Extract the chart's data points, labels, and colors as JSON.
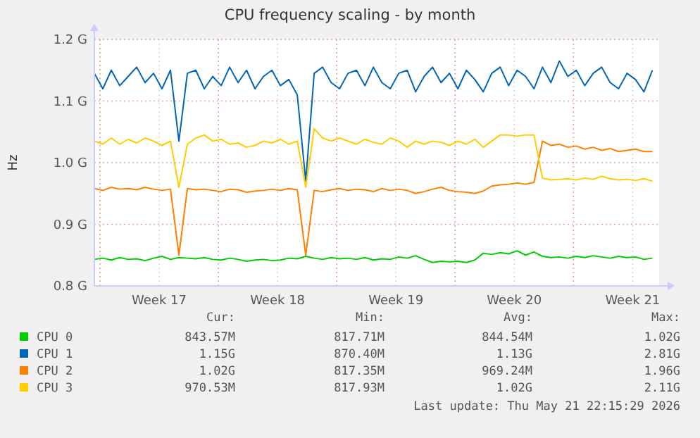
{
  "chart_data": {
    "type": "line",
    "title": "CPU frequency scaling - by month",
    "ylabel": "Hz",
    "x": [
      "2026-04-19T16:00",
      "2026-04-20T04:00",
      "2026-04-20T16:00",
      "2026-04-21T04:00",
      "2026-04-21T16:00",
      "2026-04-22T04:00",
      "2026-04-22T16:00",
      "2026-04-23T04:00",
      "2026-04-23T16:00",
      "2026-04-24T04:00",
      "2026-04-24T16:00",
      "2026-04-25T04:00",
      "2026-04-25T16:00",
      "2026-04-26T04:00",
      "2026-04-26T16:00",
      "2026-04-27T04:00",
      "2026-04-27T16:00",
      "2026-04-28T04:00",
      "2026-04-28T16:00",
      "2026-04-29T04:00",
      "2026-04-29T16:00",
      "2026-04-30T04:00",
      "2026-04-30T16:00",
      "2026-05-01T04:00",
      "2026-05-01T16:00",
      "2026-05-02T04:00",
      "2026-05-02T16:00",
      "2026-05-03T04:00",
      "2026-05-03T16:00",
      "2026-05-04T04:00",
      "2026-05-04T16:00",
      "2026-05-05T04:00",
      "2026-05-05T16:00",
      "2026-05-06T04:00",
      "2026-05-06T16:00",
      "2026-05-07T04:00",
      "2026-05-07T16:00",
      "2026-05-08T04:00",
      "2026-05-08T16:00",
      "2026-05-09T04:00",
      "2026-05-09T16:00",
      "2026-05-10T04:00",
      "2026-05-10T16:00",
      "2026-05-11T04:00",
      "2026-05-11T16:00",
      "2026-05-12T04:00",
      "2026-05-12T16:00",
      "2026-05-13T04:00",
      "2026-05-13T16:00",
      "2026-05-14T04:00",
      "2026-05-14T16:00",
      "2026-05-15T04:00",
      "2026-05-15T16:00",
      "2026-05-16T04:00",
      "2026-05-16T16:00",
      "2026-05-17T04:00",
      "2026-05-17T16:00",
      "2026-05-18T04:00",
      "2026-05-18T16:00",
      "2026-05-19T04:00",
      "2026-05-19T16:00",
      "2026-05-20T04:00",
      "2026-05-20T16:00",
      "2026-05-21T04:00",
      "2026-05-21T16:00",
      "2026-05-22T04:00",
      "2026-05-22T16:00"
    ],
    "xlim": [
      "2026-04-19T16:00",
      "2026-05-23T01:36"
    ],
    "xticks": [
      {
        "value": "2026-04-20",
        "label": null
      },
      {
        "value": "2026-04-23T12:00",
        "label": "Week 17"
      },
      {
        "value": "2026-04-27",
        "label": null
      },
      {
        "value": "2026-04-30T12:00",
        "label": "Week 18"
      },
      {
        "value": "2026-05-04",
        "label": null
      },
      {
        "value": "2026-05-07T12:00",
        "label": "Week 19"
      },
      {
        "value": "2026-05-11",
        "label": null
      },
      {
        "value": "2026-05-14T12:00",
        "label": "Week 20"
      },
      {
        "value": "2026-05-18",
        "label": null
      },
      {
        "value": "2026-05-21T12:00",
        "label": "Week 21"
      }
    ],
    "ylim": [
      0.8,
      1.2
    ],
    "yticks": [
      {
        "value": 0.8,
        "label": "0.8 G"
      },
      {
        "value": 0.9,
        "label": "0.9 G"
      },
      {
        "value": 1.0,
        "label": "1.0 G"
      },
      {
        "value": 1.1,
        "label": "1.1 G"
      },
      {
        "value": 1.2,
        "label": "1.2 G"
      }
    ],
    "grid": true,
    "legend": "bottom",
    "series": [
      {
        "name": "CPU 0",
        "color": "#00cc00",
        "values": [
          0.843,
          0.845,
          0.842,
          0.846,
          0.843,
          0.844,
          0.841,
          0.845,
          0.848,
          0.843,
          0.846,
          0.845,
          0.844,
          0.846,
          0.843,
          0.842,
          0.845,
          0.843,
          0.84,
          0.842,
          0.843,
          0.841,
          0.842,
          0.845,
          0.844,
          0.848,
          0.845,
          0.843,
          0.846,
          0.844,
          0.845,
          0.843,
          0.846,
          0.842,
          0.844,
          0.843,
          0.847,
          0.845,
          0.849,
          0.843,
          0.838,
          0.84,
          0.839,
          0.84,
          0.838,
          0.842,
          0.853,
          0.851,
          0.854,
          0.852,
          0.857,
          0.85,
          0.855,
          0.848,
          0.846,
          0.847,
          0.845,
          0.848,
          0.846,
          0.849,
          0.847,
          0.845,
          0.848,
          0.846,
          0.847,
          0.843,
          0.845
        ]
      },
      {
        "name": "CPU 1",
        "color": "#0066b3",
        "values": [
          1.145,
          1.12,
          1.15,
          1.125,
          1.14,
          1.155,
          1.13,
          1.145,
          1.12,
          1.15,
          1.035,
          1.145,
          1.15,
          1.12,
          1.14,
          1.125,
          1.155,
          1.13,
          1.15,
          1.12,
          1.14,
          1.15,
          1.125,
          1.135,
          1.11,
          0.97,
          1.145,
          1.155,
          1.13,
          1.12,
          1.145,
          1.15,
          1.125,
          1.155,
          1.13,
          1.12,
          1.145,
          1.15,
          1.115,
          1.14,
          1.155,
          1.13,
          1.145,
          1.12,
          1.15,
          1.135,
          1.115,
          1.145,
          1.155,
          1.125,
          1.15,
          1.14,
          1.12,
          1.155,
          1.13,
          1.165,
          1.14,
          1.15,
          1.125,
          1.145,
          1.155,
          1.13,
          1.12,
          1.145,
          1.135,
          1.115,
          1.15
        ]
      },
      {
        "name": "CPU 2",
        "color": "#ff8000",
        "values": [
          0.958,
          0.955,
          0.96,
          0.957,
          0.958,
          0.956,
          0.96,
          0.957,
          0.955,
          0.957,
          0.85,
          0.958,
          0.956,
          0.957,
          0.955,
          0.953,
          0.957,
          0.956,
          0.952,
          0.954,
          0.955,
          0.957,
          0.955,
          0.958,
          0.956,
          0.85,
          0.955,
          0.953,
          0.956,
          0.958,
          0.955,
          0.957,
          0.956,
          0.953,
          0.958,
          0.955,
          0.957,
          0.955,
          0.95,
          0.953,
          0.957,
          0.96,
          0.955,
          0.953,
          0.952,
          0.95,
          0.954,
          0.962,
          0.964,
          0.965,
          0.967,
          0.965,
          0.968,
          1.035,
          1.028,
          1.03,
          1.025,
          1.027,
          1.022,
          1.025,
          1.02,
          1.023,
          1.018,
          1.02,
          1.022,
          1.018,
          1.018
        ]
      },
      {
        "name": "CPU 3",
        "color": "#ffcc00",
        "values": [
          1.035,
          1.03,
          1.04,
          1.03,
          1.038,
          1.032,
          1.04,
          1.035,
          1.028,
          1.035,
          0.96,
          1.03,
          1.04,
          1.045,
          1.035,
          1.038,
          1.03,
          1.032,
          1.025,
          1.028,
          1.035,
          1.032,
          1.038,
          1.03,
          1.035,
          0.96,
          1.055,
          1.04,
          1.035,
          1.04,
          1.035,
          1.03,
          1.038,
          1.033,
          1.03,
          1.04,
          1.035,
          1.025,
          1.035,
          1.03,
          1.035,
          1.033,
          1.028,
          1.035,
          1.03,
          1.038,
          1.025,
          1.035,
          1.045,
          1.045,
          1.043,
          1.045,
          1.045,
          0.975,
          0.972,
          0.973,
          0.974,
          0.972,
          0.975,
          0.973,
          0.978,
          0.974,
          0.972,
          0.973,
          0.971,
          0.974,
          0.97
        ]
      }
    ],
    "annotations": [
      "Cur:",
      "Min:",
      "Avg:",
      "Max:",
      "843.57M",
      "817.71M",
      "844.54M",
      "1.02G",
      "1.15G",
      "870.40M",
      "1.13G",
      "2.81G",
      "1.02G",
      "817.35M",
      "969.24M",
      "1.96G",
      "970.53M",
      "817.93M",
      "1.02G",
      "2.11G",
      "Last update: Thu May 21 22:15:29 2026"
    ]
  }
}
